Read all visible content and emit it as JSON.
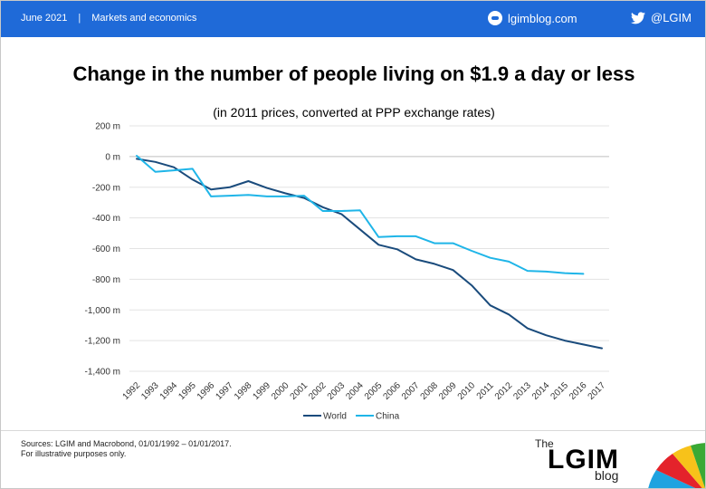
{
  "header": {
    "date": "June 2021",
    "separator": "|",
    "section": "Markets and economics",
    "site": "lgimblog.com",
    "twitter": "@LGIM"
  },
  "colors": {
    "header_bg": "#1f6ad8",
    "world": "#1a4b7c",
    "china": "#1fb5e8"
  },
  "icons": {
    "site": "globe-icon",
    "twitter": "twitter-bird-icon"
  },
  "chart_data": {
    "type": "line",
    "title": "Change in the number of people living on $1.9 a day or less",
    "subtitle": "(in 2011 prices, converted at PPP exchange rates)",
    "xlabel": "",
    "ylabel": "",
    "categories": [
      "1992",
      "1993",
      "1994",
      "1995",
      "1996",
      "1997",
      "1998",
      "1999",
      "2000",
      "2001",
      "2002",
      "2003",
      "2004",
      "2005",
      "2006",
      "2007",
      "2008",
      "2009",
      "2010",
      "2011",
      "2012",
      "2013",
      "2014",
      "2015",
      "2016",
      "2017"
    ],
    "ylim": [
      -1400,
      200
    ],
    "yticks": [
      200,
      0,
      -200,
      -400,
      -600,
      -800,
      -1000,
      -1200,
      -1400
    ],
    "ytick_labels": [
      "200 m",
      "0 m",
      "-200 m",
      "-400 m",
      "-600 m",
      "-800 m",
      "-1,000 m",
      "-1,200 m",
      "-1,400 m"
    ],
    "grid": true,
    "legend_position": "bottom",
    "series": [
      {
        "name": "World",
        "values": [
          -15,
          -35,
          -70,
          -150,
          -215,
          -200,
          -160,
          -205,
          -240,
          -270,
          -330,
          -375,
          -475,
          -575,
          -605,
          -670,
          -700,
          -740,
          -840,
          -970,
          -1030,
          -1120,
          -1165,
          -1200,
          -1225,
          -1250
        ]
      },
      {
        "name": "China",
        "values": [
          5,
          -100,
          -90,
          -80,
          -260,
          -255,
          -250,
          -260,
          -260,
          -255,
          -355,
          -355,
          -350,
          -525,
          -520,
          -520,
          -565,
          -565,
          -615,
          -660,
          -685,
          -745,
          -750,
          -760,
          -765,
          null
        ]
      }
    ]
  },
  "footer": {
    "sources": "Sources: LGIM and Macrobond, 01/01/1992 – 01/01/2017.",
    "note": "For illustrative purposes only.",
    "logo_the": "The",
    "logo_name": "LGIM",
    "logo_blog": "blog"
  }
}
